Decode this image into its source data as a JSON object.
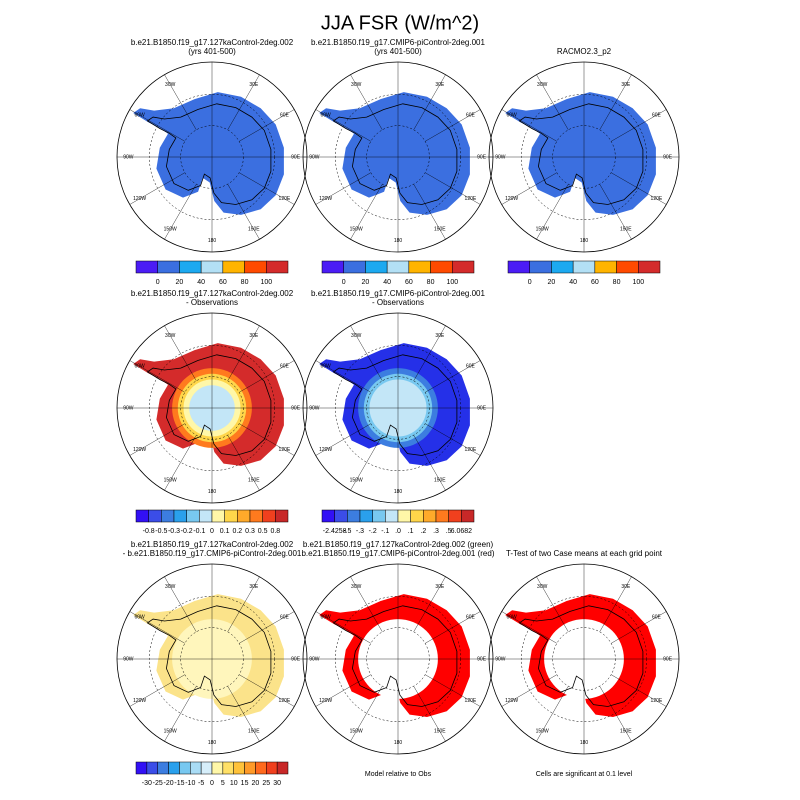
{
  "title": "JJA FSR (W/m^2)",
  "lon_labels": [
    "30E",
    "60E",
    "90E",
    "120E",
    "150E",
    "180",
    "150W",
    "120W",
    "90W",
    "60W",
    "30W"
  ],
  "panels": [
    {
      "title": [
        "b.e21.B1850.f19_g17.127kaControl-2deg.002",
        "(yrs 401-500)"
      ],
      "colors": [
        "#3b6fe0"
      ],
      "colorbar": {
        "colors": [
          "#4b1cf5",
          "#3b6fe0",
          "#1ca9f0",
          "#b3e0f5",
          "#ffb400",
          "#ff4a00",
          "#d42b2b"
        ],
        "labels": [
          "0",
          "20",
          "40",
          "60",
          "80",
          "100"
        ]
      }
    },
    {
      "title": [
        "b.e21.B1850.f19_g17.CMIP6-piControl-2deg.001",
        "(yrs 401-500)"
      ],
      "colors": [
        "#3b6fe0"
      ],
      "colorbar": {
        "colors": [
          "#4b1cf5",
          "#3b6fe0",
          "#1ca9f0",
          "#b3e0f5",
          "#ffb400",
          "#ff4a00",
          "#d42b2b"
        ],
        "labels": [
          "0",
          "20",
          "40",
          "60",
          "80",
          "100"
        ]
      }
    },
    {
      "title": [
        "RACMO2.3_p2"
      ],
      "colors": [
        "#3b6fe0"
      ],
      "colorbar": {
        "colors": [
          "#4b1cf5",
          "#3b6fe0",
          "#1ca9f0",
          "#b3e0f5",
          "#ffb400",
          "#ff4a00",
          "#d42b2b"
        ],
        "labels": [
          "0",
          "20",
          "40",
          "60",
          "80",
          "100"
        ]
      }
    },
    {
      "title": [
        "b.e21.B1850.f19_g17.127kaControl-2deg.002",
        "- Observations"
      ],
      "colors": [
        "#d42b2b",
        "#ff7a1e",
        "#ffd64a",
        "#fff7a8",
        "#c3e6f7"
      ],
      "colorbar": {
        "colors": [
          "#3210f5",
          "#3b4de8",
          "#3c7de0",
          "#2aa0ec",
          "#78c8f0",
          "#c3e6f7",
          "#fff7a8",
          "#ffd64a",
          "#ffaa2a",
          "#ff7a1e",
          "#f0401e",
          "#c82828"
        ],
        "labels": [
          "-0.8",
          "-0.5",
          "-0.3",
          "-0.2",
          "-0.1",
          "0",
          "0.1",
          "0.2",
          "0.3",
          "0.5",
          "0.8"
        ]
      }
    },
    {
      "title": [
        "b.e21.B1850.f19_g17.CMIP6-piControl-2deg.001",
        "- Observations"
      ],
      "colors": [
        "#2530e8",
        "#3c7de0",
        "#78c8f0",
        "#c3e6f7"
      ],
      "colorbar": {
        "colors": [
          "#3210f5",
          "#3b4de8",
          "#3c7de0",
          "#2aa0ec",
          "#78c8f0",
          "#c3e6f7",
          "#fff7a8",
          "#ffd64a",
          "#ffaa2a",
          "#ff7a1e",
          "#f0401e",
          "#c82828"
        ],
        "labels": [
          "-2.4258",
          "-.5",
          "-.3",
          "-.2",
          "-.1",
          ".0",
          ".1",
          ".2",
          ".3",
          ".5",
          "6.0682"
        ]
      }
    },
    {
      "title": [
        "b.e21.B1850.f19_g17.127kaControl-2deg.002",
        "- b.e21.B1850.f19_g17.CMIP6-piControl-2deg.001"
      ],
      "colors": [
        "#fbe38a",
        "#fff6bc"
      ],
      "colorbar": {
        "colors": [
          "#3210f5",
          "#3b4de8",
          "#3c7de0",
          "#2aa0ec",
          "#78c8f0",
          "#a9dcf5",
          "#d6eefa",
          "#fff7a8",
          "#ffe066",
          "#ffc23a",
          "#ff9a28",
          "#ff6a1e",
          "#f0401e",
          "#c82828"
        ],
        "labels": [
          "-30",
          "-25",
          "-20",
          "-15",
          "-10",
          "-5",
          "0",
          "5",
          "10",
          "15",
          "20",
          "25",
          "30"
        ]
      }
    },
    {
      "title": [
        "b.e21.B1850.f19_g17.127kaControl-2deg.002 (green)",
        "b.e21.B1850.f19_g17.CMIP6-piControl-2deg.001 (red)"
      ],
      "colors": [
        "#ff0000",
        "#ffffff"
      ],
      "note": "Model relative to Obs"
    },
    {
      "title": [
        "T-Test of two Case means at each grid point"
      ],
      "colors": [
        "#ff0000",
        "#ffffff"
      ],
      "note": "Cells are significant at 0.1 level"
    }
  ]
}
